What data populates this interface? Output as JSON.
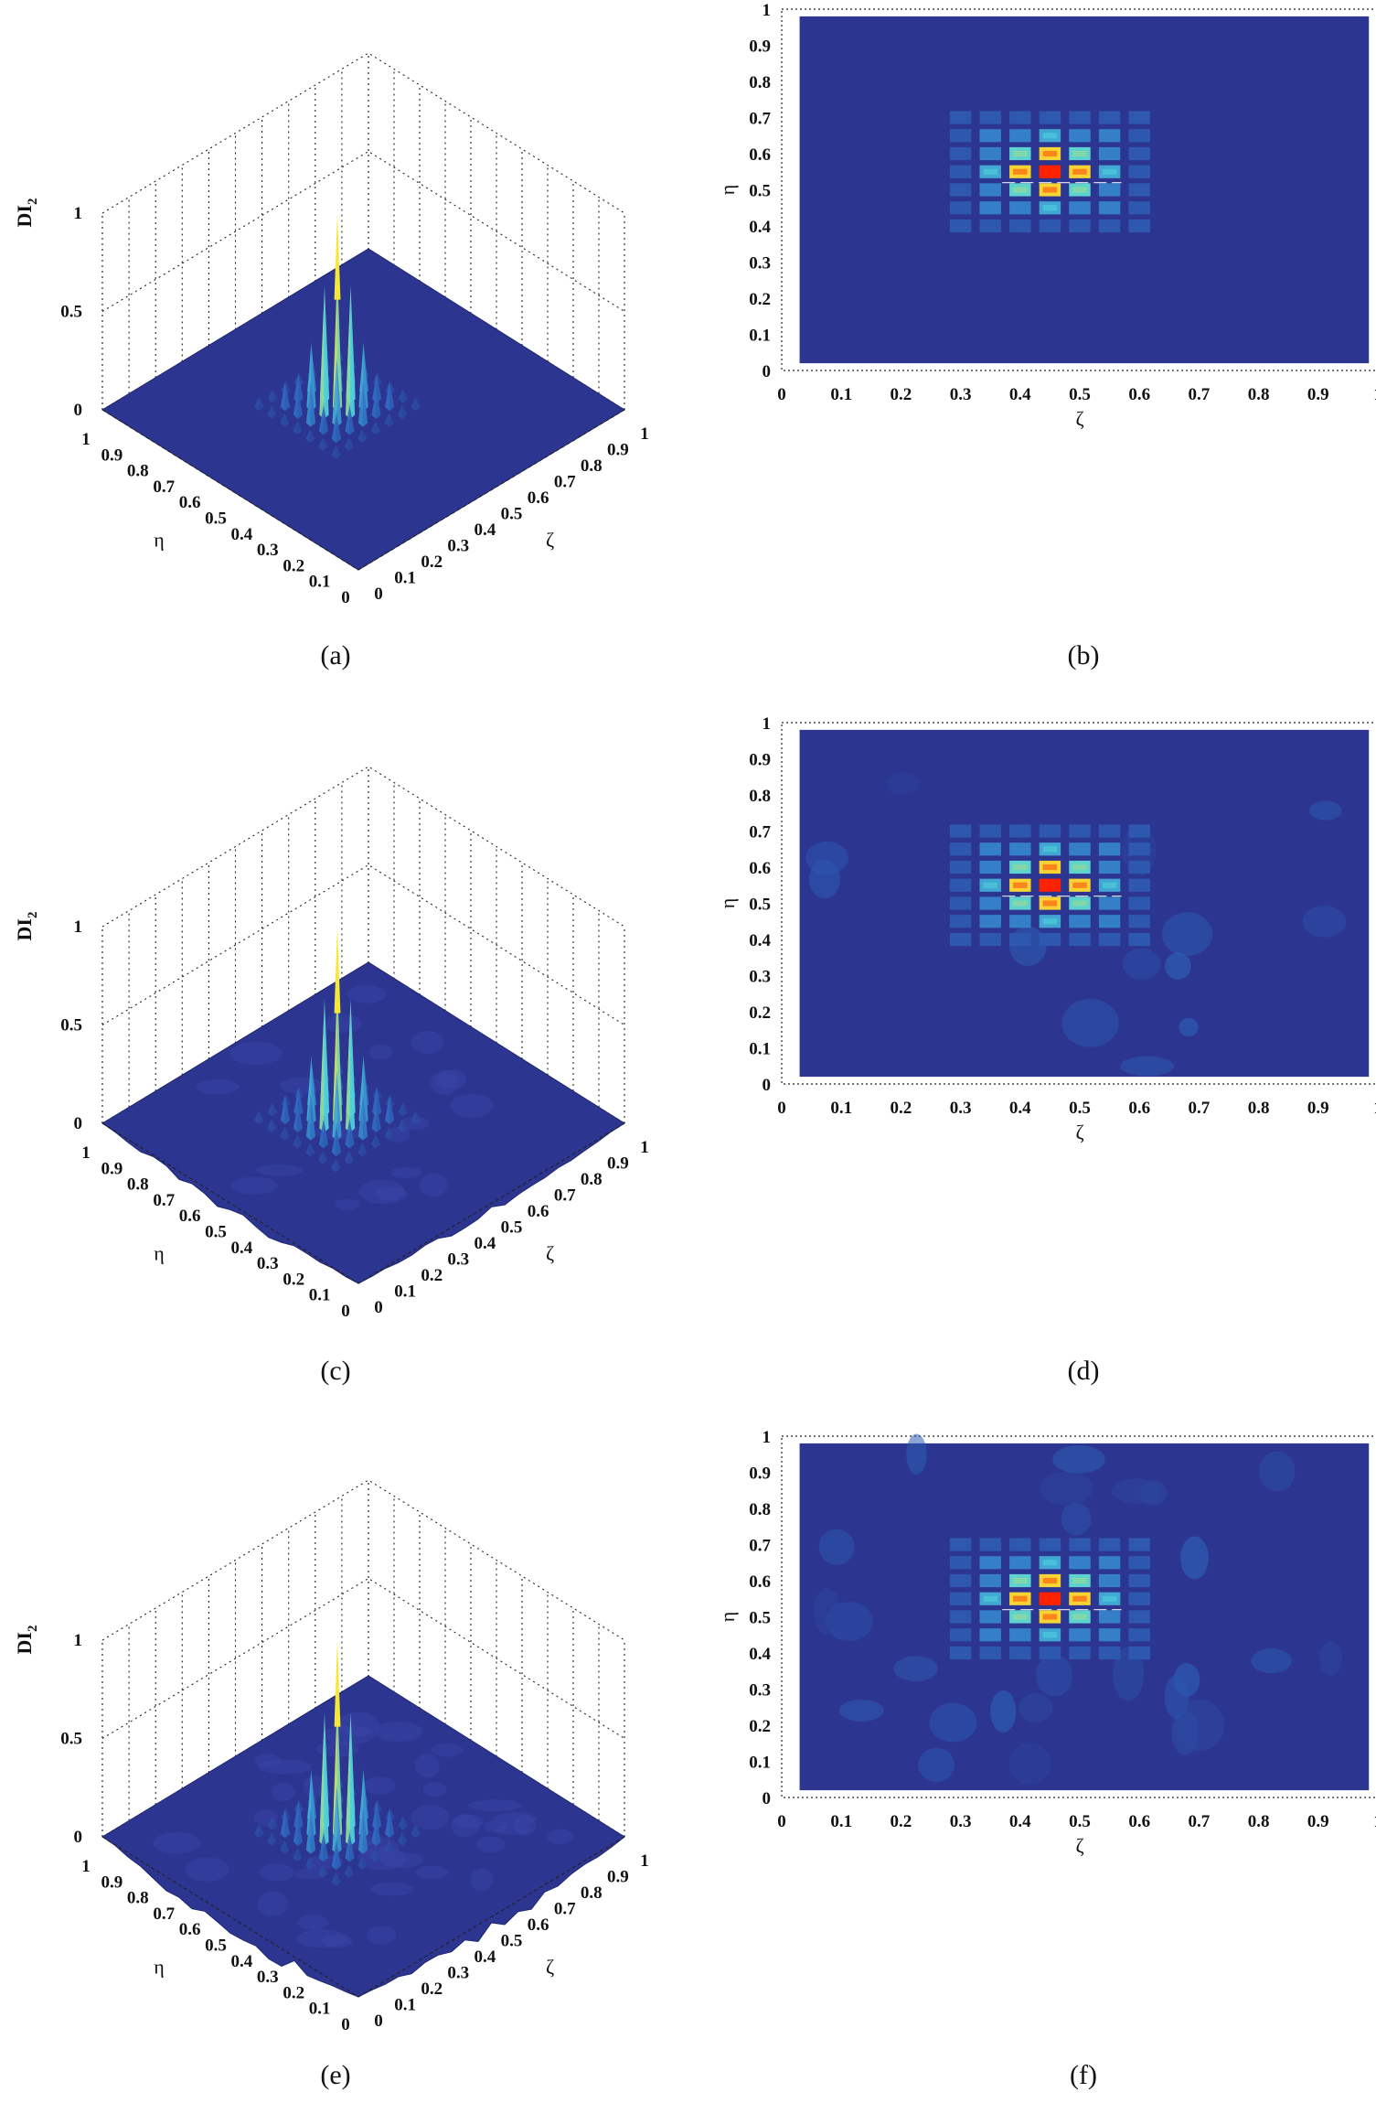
{
  "figure": {
    "captions": [
      "(a)",
      "(b)",
      "(c)",
      "(d)",
      "(e)",
      "(f)"
    ]
  },
  "surface_axes": {
    "zlabel": "DI",
    "zlabel_sub": "2",
    "ylabel": "η",
    "xlabel": "ζ",
    "z_ticks": [
      "1",
      "0.5",
      "0"
    ],
    "eta_ticks": [
      "1",
      "0.9",
      "0.8",
      "0.7",
      "0.6",
      "0.5",
      "0.4",
      "0.3",
      "0.2",
      "0.1",
      "0"
    ],
    "zeta_ticks": [
      "0",
      "0.1",
      "0.2",
      "0.3",
      "0.4",
      "0.5",
      "0.6",
      "0.7",
      "0.8",
      "0.9",
      "1"
    ]
  },
  "map_axes": {
    "ylabel": "η",
    "xlabel": "ζ",
    "y_ticks": [
      "0",
      "0.1",
      "0.2",
      "0.3",
      "0.4",
      "0.5",
      "0.6",
      "0.7",
      "0.8",
      "0.9",
      "1"
    ],
    "x_ticks": [
      "0",
      "0.1",
      "0.2",
      "0.3",
      "0.4",
      "0.5",
      "0.6",
      "0.7",
      "0.8",
      "0.9",
      "1"
    ]
  },
  "colors": {
    "background": "#2c3590",
    "peak": "#ff2200",
    "high": "#f6e83a",
    "mid": "#4fd0dc",
    "low": "#2f6fc4"
  },
  "chart_data": [
    {
      "panel": "a",
      "type": "heatmap",
      "view": "surface3d",
      "zlim": [
        0,
        1
      ],
      "xlim": [
        0,
        1
      ],
      "ylim": [
        0,
        1
      ],
      "peak": {
        "x": 0.45,
        "y": 0.55,
        "value": 1.0
      },
      "edge_noise": 0.0
    },
    {
      "panel": "b",
      "type": "heatmap",
      "view": "map2d",
      "xlim": [
        0,
        1
      ],
      "ylim": [
        0,
        1
      ],
      "peak": {
        "x": 0.45,
        "y": 0.55,
        "value": 1.0
      },
      "background_noise": 0.0
    },
    {
      "panel": "c",
      "type": "heatmap",
      "view": "surface3d",
      "zlim": [
        0,
        1
      ],
      "xlim": [
        0,
        1
      ],
      "ylim": [
        0,
        1
      ],
      "peak": {
        "x": 0.45,
        "y": 0.55,
        "value": 1.0
      },
      "edge_noise": 0.5
    },
    {
      "panel": "d",
      "type": "heatmap",
      "view": "map2d",
      "xlim": [
        0,
        1
      ],
      "ylim": [
        0,
        1
      ],
      "peak": {
        "x": 0.45,
        "y": 0.55,
        "value": 1.0
      },
      "background_noise": 0.05
    },
    {
      "panel": "e",
      "type": "heatmap",
      "view": "surface3d",
      "zlim": [
        0,
        1
      ],
      "xlim": [
        0,
        1
      ],
      "ylim": [
        0,
        1
      ],
      "peak": {
        "x": 0.45,
        "y": 0.55,
        "value": 1.0
      },
      "edge_noise": 1.0
    },
    {
      "panel": "f",
      "type": "heatmap",
      "view": "map2d",
      "xlim": [
        0,
        1
      ],
      "ylim": [
        0,
        1
      ],
      "peak": {
        "x": 0.45,
        "y": 0.55,
        "value": 1.0
      },
      "background_noise": 0.12
    }
  ]
}
